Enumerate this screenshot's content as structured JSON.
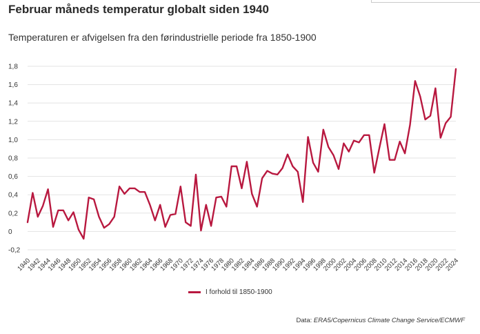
{
  "title": "Februar måneds temperatur globalt siden 1940",
  "subtitle": "Temperaturen er afvigelsen fra den førindustrielle periode fra 1850-1900",
  "source": {
    "label": "Data: ",
    "text": "ERA5/Copernicus Climate Change Service/ECMWF"
  },
  "colors": {
    "line": "#b8183f",
    "grid": "#e3e3e3"
  },
  "chart_data": {
    "type": "line",
    "x": [
      1940,
      1941,
      1942,
      1943,
      1944,
      1945,
      1946,
      1947,
      1948,
      1949,
      1950,
      1951,
      1952,
      1953,
      1954,
      1955,
      1956,
      1957,
      1958,
      1959,
      1960,
      1961,
      1962,
      1963,
      1964,
      1965,
      1966,
      1967,
      1968,
      1969,
      1970,
      1971,
      1972,
      1973,
      1974,
      1975,
      1976,
      1977,
      1978,
      1979,
      1980,
      1981,
      1982,
      1983,
      1984,
      1985,
      1986,
      1987,
      1988,
      1989,
      1990,
      1991,
      1992,
      1993,
      1994,
      1995,
      1996,
      1997,
      1998,
      1999,
      2000,
      2001,
      2002,
      2003,
      2004,
      2005,
      2006,
      2007,
      2008,
      2009,
      2010,
      2011,
      2012,
      2013,
      2014,
      2015,
      2016,
      2017,
      2018,
      2019,
      2020,
      2021,
      2022,
      2023,
      2024
    ],
    "series": [
      {
        "name": "I forhold til 1850-1900",
        "values": [
          0.1,
          0.42,
          0.16,
          0.28,
          0.46,
          0.05,
          0.23,
          0.23,
          0.12,
          0.21,
          0.02,
          -0.08,
          0.37,
          0.35,
          0.16,
          0.04,
          0.08,
          0.16,
          0.49,
          0.41,
          0.47,
          0.47,
          0.43,
          0.43,
          0.29,
          0.12,
          0.29,
          0.05,
          0.18,
          0.19,
          0.49,
          0.1,
          0.06,
          0.62,
          0.01,
          0.29,
          0.06,
          0.37,
          0.38,
          0.27,
          0.71,
          0.71,
          0.47,
          0.76,
          0.41,
          0.27,
          0.58,
          0.66,
          0.63,
          0.62,
          0.69,
          0.84,
          0.71,
          0.65,
          0.32,
          1.03,
          0.75,
          0.65,
          1.11,
          0.92,
          0.83,
          0.68,
          0.96,
          0.87,
          0.99,
          0.97,
          1.05,
          1.05,
          0.64,
          0.91,
          1.17,
          0.78,
          0.78,
          0.98,
          0.85,
          1.16,
          1.64,
          1.47,
          1.22,
          1.26,
          1.56,
          1.02,
          1.18,
          1.25,
          1.77
        ]
      }
    ],
    "x_tick_labels": [
      "1940",
      "1942",
      "1944",
      "1946",
      "1948",
      "1950",
      "1952",
      "1954",
      "1956",
      "1958",
      "1960",
      "1962",
      "1964",
      "1966",
      "1968",
      "1970",
      "1972",
      "1974",
      "1976",
      "1978",
      "1980",
      "1982",
      "1984",
      "1986",
      "1988",
      "1990",
      "1992",
      "1994",
      "1996",
      "1998",
      "2000",
      "2002",
      "2004",
      "2006",
      "2008",
      "2010",
      "2012",
      "2014",
      "2016",
      "2018",
      "2020",
      "2022",
      "2024"
    ],
    "y_ticks": [
      -0.2,
      0,
      0.2,
      0.4,
      0.6,
      0.8,
      1.0,
      1.2,
      1.4,
      1.6,
      1.8
    ],
    "y_tick_labels": [
      "-0,2",
      "0",
      "0,2",
      "0,4",
      "0,6",
      "0,8",
      "1,0",
      "1,2",
      "1,4",
      "1,6",
      "1,8"
    ],
    "ylim": [
      -0.2,
      1.8
    ],
    "xlim": [
      1940,
      2024
    ],
    "grid": true,
    "legend": "bottom-center"
  }
}
